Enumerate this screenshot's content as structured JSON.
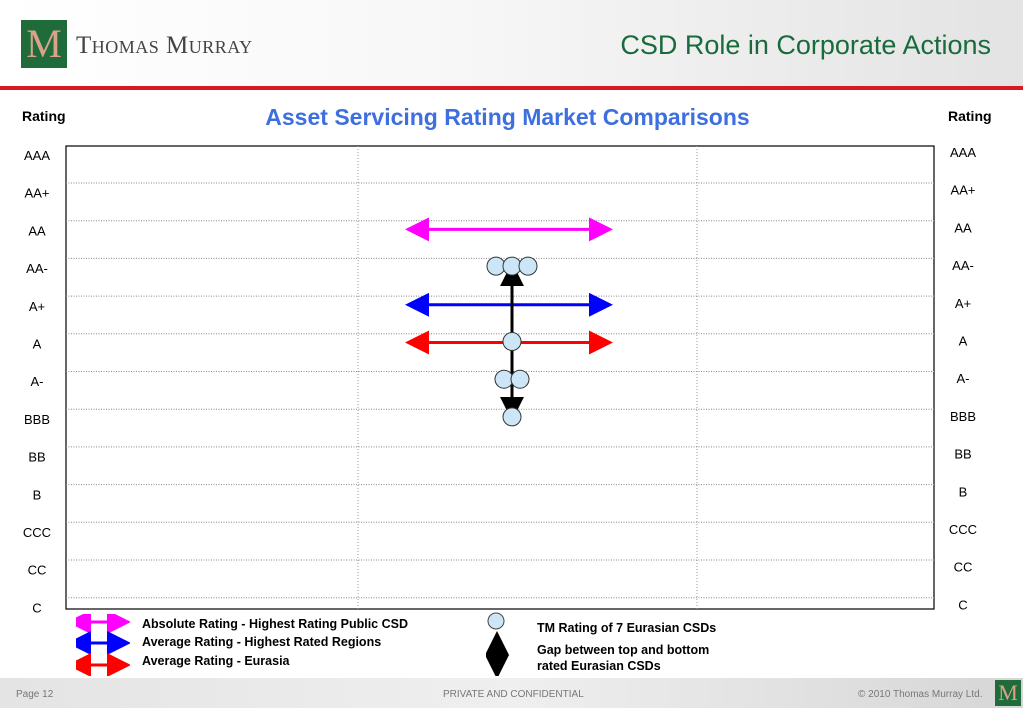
{
  "header": {
    "logo_mark": "M",
    "brand": "Thomas Murray",
    "slide_title": "CSD Role in Corporate Actions"
  },
  "colors": {
    "absolute": "#ff00ff",
    "regions": "#0000ff",
    "eurasia": "#ff0000",
    "gap": "#000000",
    "csd_fill": "#cde6f7"
  },
  "chart_data": {
    "type": "scatter",
    "title": "Asset Servicing Rating Market Comparisons",
    "left_axis_label": "Rating",
    "right_axis_label": "Rating",
    "y_categories": [
      "AAA",
      "AA+",
      "AA",
      "AA-",
      "A+",
      "A",
      "A-",
      "BBB",
      "BB",
      "B",
      "CCC",
      "CC",
      "C"
    ],
    "x_gridlines": 2,
    "grid": true,
    "range_lines": [
      {
        "name": "Absolute Rating -  Highest Rating Public CSD",
        "rating": "AA",
        "color": "#ff00ff"
      },
      {
        "name": "Average Rating - Highest Rated Regions",
        "rating": "A+",
        "color": "#0000ff"
      },
      {
        "name": "Average Rating - Eurasia",
        "rating": "A",
        "color": "#ff0000"
      }
    ],
    "csd_points": [
      {
        "rating": "AA-",
        "offset": -1
      },
      {
        "rating": "AA-",
        "offset": 0
      },
      {
        "rating": "AA-",
        "offset": 1
      },
      {
        "rating": "A",
        "offset": 0
      },
      {
        "rating": "A-",
        "offset": -0.5
      },
      {
        "rating": "A-",
        "offset": 0.5
      },
      {
        "rating": "BBB",
        "offset": 0
      }
    ],
    "gap": {
      "top": "AA-",
      "bottom": "BBB"
    }
  },
  "legend": {
    "absolute": "Absolute Rating -  Highest Rating Public CSD",
    "regions": "Average Rating - Highest Rated Regions",
    "eurasia": "Average Rating - Eurasia",
    "csd": "TM Rating of 7 Eurasian CSDs",
    "gap_line1": "Gap between top and bottom",
    "gap_line2": "rated Eurasian CSDs"
  },
  "footer": {
    "page": "Page 12",
    "confidential": "PRIVATE AND CONFIDENTIAL",
    "copyright": "©  2010 Thomas Murray Ltd."
  }
}
